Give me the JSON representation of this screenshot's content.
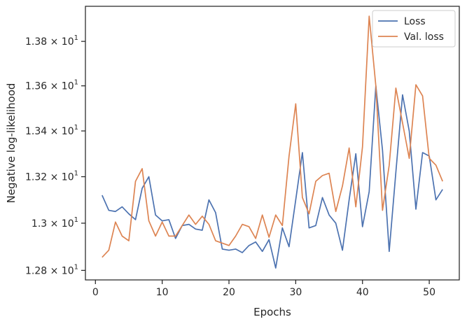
{
  "chart_data": {
    "type": "line",
    "title": "",
    "xlabel": "Epochs",
    "ylabel": "Negative log-likelihood",
    "xlim": [
      -1.5,
      54.5
    ],
    "ylim": [
      12.76,
      13.96
    ],
    "yscale": "log",
    "grid": false,
    "legend_position": "top-right",
    "x_ticks": [
      0,
      10,
      20,
      30,
      40,
      50
    ],
    "x_tick_labels": [
      "0",
      "10",
      "20",
      "30",
      "40",
      "50"
    ],
    "y_ticks": [
      {
        "value": 12.8,
        "mantissa": "1.28"
      },
      {
        "value": 13.0,
        "mantissa": "1.3"
      },
      {
        "value": 13.2,
        "mantissa": "1.32"
      },
      {
        "value": 13.4,
        "mantissa": "1.34"
      },
      {
        "value": 13.6,
        "mantissa": "1.36"
      },
      {
        "value": 13.8,
        "mantissa": "1.38"
      }
    ],
    "y_tick_base": "10",
    "y_tick_exponent": "1",
    "x": [
      1,
      2,
      3,
      4,
      5,
      6,
      7,
      8,
      9,
      10,
      11,
      12,
      13,
      14,
      15,
      16,
      17,
      18,
      19,
      20,
      21,
      22,
      23,
      24,
      25,
      26,
      27,
      28,
      29,
      30,
      31,
      32,
      33,
      34,
      35,
      36,
      37,
      38,
      39,
      40,
      41,
      42,
      43,
      44,
      45,
      46,
      47,
      48,
      49,
      50,
      51,
      52
    ],
    "series": [
      {
        "name": "Loss",
        "color": "#4c72b0",
        "values": [
          13.12,
          13.055,
          13.05,
          13.07,
          13.04,
          13.015,
          13.15,
          13.2,
          13.035,
          13.01,
          13.015,
          12.935,
          12.99,
          12.995,
          12.975,
          12.97,
          13.1,
          13.045,
          12.89,
          12.885,
          12.89,
          12.875,
          12.905,
          12.92,
          12.88,
          12.93,
          12.81,
          12.98,
          12.9,
          13.1,
          13.305,
          12.98,
          12.99,
          13.11,
          13.035,
          13.0,
          12.885,
          13.1,
          13.3,
          12.985,
          13.135,
          13.6,
          13.315,
          12.88,
          13.22,
          13.56,
          13.4,
          13.06,
          13.305,
          13.29,
          13.1,
          13.145
        ]
      },
      {
        "name": "Val. loss",
        "color": "#dd8452",
        "values": [
          12.855,
          12.885,
          13.005,
          12.945,
          12.925,
          13.18,
          13.235,
          13.01,
          12.945,
          13.005,
          12.945,
          12.945,
          12.99,
          13.035,
          12.995,
          13.03,
          12.995,
          12.925,
          12.915,
          12.905,
          12.945,
          12.995,
          12.985,
          12.935,
          13.035,
          12.94,
          13.035,
          12.99,
          13.29,
          13.52,
          13.11,
          13.04,
          13.18,
          13.205,
          13.215,
          13.05,
          13.16,
          13.325,
          13.07,
          13.33,
          13.915,
          13.6,
          13.055,
          13.25,
          13.59,
          13.435,
          13.28,
          13.605,
          13.555,
          13.28,
          13.25,
          13.18
        ]
      }
    ]
  }
}
